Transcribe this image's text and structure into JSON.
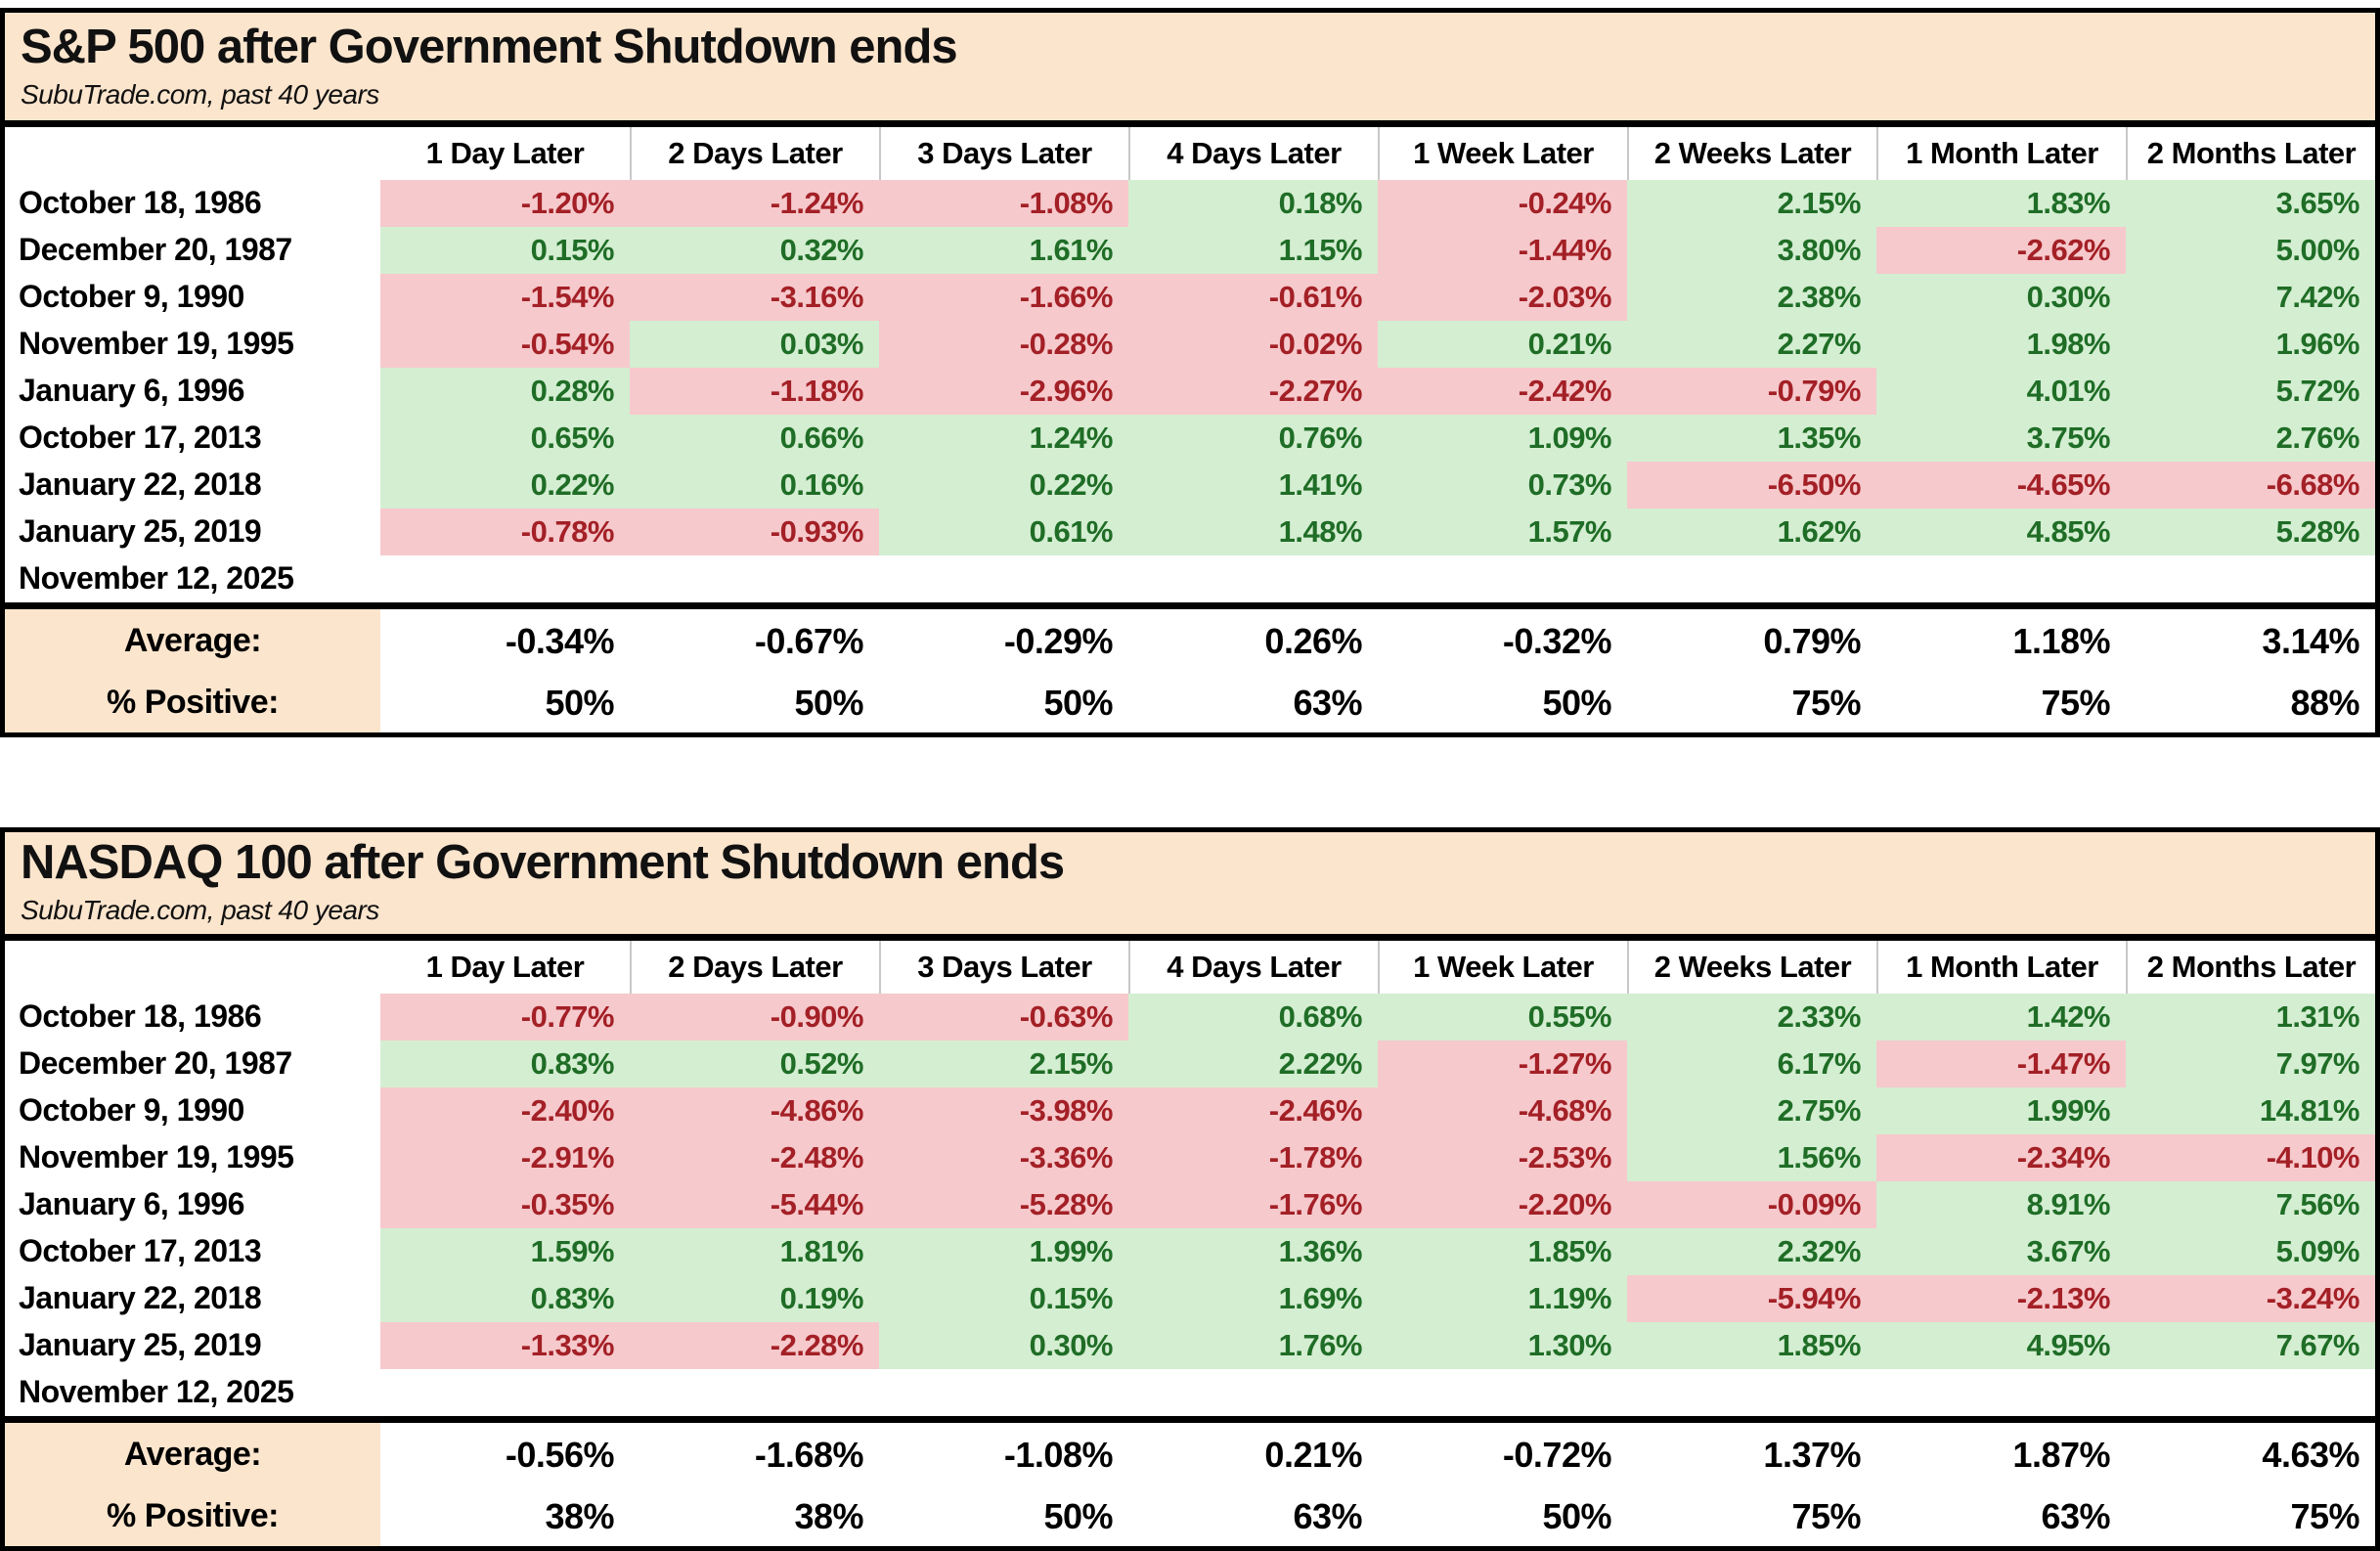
{
  "colors": {
    "panel_bg": "#fce5cd",
    "positive_bg": "#d4eed2",
    "negative_bg": "#f6c9cc",
    "positive_text": "#1f6d26",
    "negative_text": "#a32026",
    "header_divider": "#c8c8c8",
    "border": "#000000"
  },
  "chart_data": [
    {
      "type": "table",
      "title": "S&P 500 after Government Shutdown ends",
      "subtitle": "SubuTrade.com, past 40 years",
      "columns": [
        "1 Day Later",
        "2 Days Later",
        "3 Days Later",
        "4 Days Later",
        "1 Week Later",
        "2 Weeks Later",
        "1 Month Later",
        "2 Months Later"
      ],
      "rows": [
        {
          "date": "October 18, 1986",
          "values": [
            "-1.20%",
            "-1.24%",
            "-1.08%",
            "0.18%",
            "-0.24%",
            "2.15%",
            "1.83%",
            "3.65%"
          ]
        },
        {
          "date": "December 20, 1987",
          "values": [
            "0.15%",
            "0.32%",
            "1.61%",
            "1.15%",
            "-1.44%",
            "3.80%",
            "-2.62%",
            "5.00%"
          ]
        },
        {
          "date": "October 9, 1990",
          "values": [
            "-1.54%",
            "-3.16%",
            "-1.66%",
            "-0.61%",
            "-2.03%",
            "2.38%",
            "0.30%",
            "7.42%"
          ]
        },
        {
          "date": "November 19, 1995",
          "values": [
            "-0.54%",
            "0.03%",
            "-0.28%",
            "-0.02%",
            "0.21%",
            "2.27%",
            "1.98%",
            "1.96%"
          ]
        },
        {
          "date": "January 6, 1996",
          "values": [
            "0.28%",
            "-1.18%",
            "-2.96%",
            "-2.27%",
            "-2.42%",
            "-0.79%",
            "4.01%",
            "5.72%"
          ]
        },
        {
          "date": "October 17, 2013",
          "values": [
            "0.65%",
            "0.66%",
            "1.24%",
            "0.76%",
            "1.09%",
            "1.35%",
            "3.75%",
            "2.76%"
          ]
        },
        {
          "date": "January 22, 2018",
          "values": [
            "0.22%",
            "0.16%",
            "0.22%",
            "1.41%",
            "0.73%",
            "-6.50%",
            "-4.65%",
            "-6.68%"
          ]
        },
        {
          "date": "January 25, 2019",
          "values": [
            "-0.78%",
            "-0.93%",
            "0.61%",
            "1.48%",
            "1.57%",
            "1.62%",
            "4.85%",
            "5.28%"
          ]
        },
        {
          "date": "November 12, 2025",
          "values": [
            "",
            "",
            "",
            "",
            "",
            "",
            "",
            ""
          ]
        }
      ],
      "summary": [
        {
          "label": "Average:",
          "values": [
            "-0.34%",
            "-0.67%",
            "-0.29%",
            "0.26%",
            "-0.32%",
            "0.79%",
            "1.18%",
            "3.14%"
          ]
        },
        {
          "label": "% Positive:",
          "values": [
            "50%",
            "50%",
            "50%",
            "63%",
            "50%",
            "75%",
            "75%",
            "88%"
          ]
        }
      ]
    },
    {
      "type": "table",
      "title": "NASDAQ 100 after Government Shutdown ends",
      "subtitle": "SubuTrade.com, past 40 years",
      "columns": [
        "1 Day Later",
        "2 Days Later",
        "3 Days Later",
        "4 Days Later",
        "1 Week Later",
        "2 Weeks Later",
        "1 Month Later",
        "2 Months Later"
      ],
      "rows": [
        {
          "date": "October 18, 1986",
          "values": [
            "-0.77%",
            "-0.90%",
            "-0.63%",
            "0.68%",
            "0.55%",
            "2.33%",
            "1.42%",
            "1.31%"
          ]
        },
        {
          "date": "December 20, 1987",
          "values": [
            "0.83%",
            "0.52%",
            "2.15%",
            "2.22%",
            "-1.27%",
            "6.17%",
            "-1.47%",
            "7.97%"
          ]
        },
        {
          "date": "October 9, 1990",
          "values": [
            "-2.40%",
            "-4.86%",
            "-3.98%",
            "-2.46%",
            "-4.68%",
            "2.75%",
            "1.99%",
            "14.81%"
          ]
        },
        {
          "date": "November 19, 1995",
          "values": [
            "-2.91%",
            "-2.48%",
            "-3.36%",
            "-1.78%",
            "-2.53%",
            "1.56%",
            "-2.34%",
            "-4.10%"
          ]
        },
        {
          "date": "January 6, 1996",
          "values": [
            "-0.35%",
            "-5.44%",
            "-5.28%",
            "-1.76%",
            "-2.20%",
            "-0.09%",
            "8.91%",
            "7.56%"
          ]
        },
        {
          "date": "October 17, 2013",
          "values": [
            "1.59%",
            "1.81%",
            "1.99%",
            "1.36%",
            "1.85%",
            "2.32%",
            "3.67%",
            "5.09%"
          ]
        },
        {
          "date": "January 22, 2018",
          "values": [
            "0.83%",
            "0.19%",
            "0.15%",
            "1.69%",
            "1.19%",
            "-5.94%",
            "-2.13%",
            "-3.24%"
          ]
        },
        {
          "date": "January 25, 2019",
          "values": [
            "-1.33%",
            "-2.28%",
            "0.30%",
            "1.76%",
            "1.30%",
            "1.85%",
            "4.95%",
            "7.67%"
          ]
        },
        {
          "date": "November 12, 2025",
          "values": [
            "",
            "",
            "",
            "",
            "",
            "",
            "",
            ""
          ]
        }
      ],
      "summary": [
        {
          "label": "Average:",
          "values": [
            "-0.56%",
            "-1.68%",
            "-1.08%",
            "0.21%",
            "-0.72%",
            "1.37%",
            "1.87%",
            "4.63%"
          ]
        },
        {
          "label": "% Positive:",
          "values": [
            "38%",
            "38%",
            "50%",
            "63%",
            "50%",
            "75%",
            "63%",
            "75%"
          ]
        }
      ]
    }
  ]
}
